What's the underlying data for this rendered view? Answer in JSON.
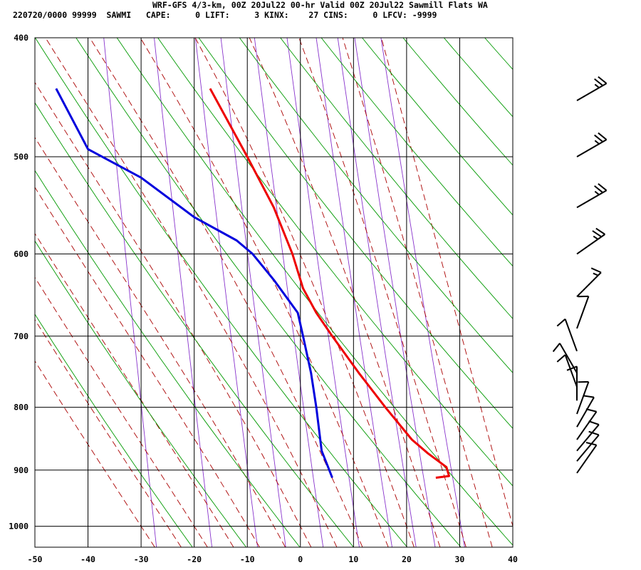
{
  "header": {
    "title": "WRF-GFS 4/3-km, 00Z 20Jul22 00-hr Valid 00Z 20Jul22 Sawmill Flats WA",
    "indices_line": "220720/0000 99999  SAWMI   CAPE:     0 LIFT:     3 KINX:    27 CINS:     0 LFCV: -9999"
  },
  "colors": {
    "temperature": "#ee0000",
    "dewpoint": "#0000dd",
    "dry_adiabat": "#009900",
    "moist_adiabat": "#aa0000",
    "mixing_ratio": "#8833cc",
    "grid": "#000000",
    "wind_barb": "#000000"
  },
  "chart_data": {
    "type": "line",
    "subtype": "skew-t log-p sounding",
    "x_ticks": [
      "-50",
      "-40",
      "-30",
      "-20",
      "-10",
      "0",
      "10",
      "20",
      "30",
      "40"
    ],
    "x_tick_values": [
      -50,
      -40,
      -30,
      -20,
      -10,
      0,
      10,
      20,
      30,
      40
    ],
    "y_ticks": [
      "400",
      "500",
      "600",
      "700",
      "800",
      "900",
      "1000"
    ],
    "y_tick_values": [
      400,
      500,
      600,
      700,
      800,
      900,
      1000
    ],
    "xlim": [
      -50,
      40
    ],
    "ylim_pressure_hpa": [
      1040,
      400
    ],
    "skew_deg_per_decade_pressure": 0,
    "series": [
      {
        "key": "temperature",
        "points": [
          {
            "p": 913,
            "t": 25.5
          },
          {
            "p": 910,
            "t": 28.0
          },
          {
            "p": 895,
            "t": 27.5
          },
          {
            "p": 872,
            "t": 24.0
          },
          {
            "p": 850,
            "t": 21.0
          },
          {
            "p": 800,
            "t": 16.0
          },
          {
            "p": 750,
            "t": 11.0
          },
          {
            "p": 700,
            "t": 6.0
          },
          {
            "p": 670,
            "t": 3.0
          },
          {
            "p": 640,
            "t": 0.5
          },
          {
            "p": 600,
            "t": -1.5
          },
          {
            "p": 550,
            "t": -5.0
          },
          {
            "p": 500,
            "t": -10.0
          },
          {
            "p": 440,
            "t": -17.0
          }
        ]
      },
      {
        "key": "dewpoint",
        "points": [
          {
            "p": 913,
            "t": 6.0
          },
          {
            "p": 890,
            "t": 5.0
          },
          {
            "p": 868,
            "t": 4.0
          },
          {
            "p": 800,
            "t": 3.0
          },
          {
            "p": 750,
            "t": 2.0
          },
          {
            "p": 700,
            "t": 0.5
          },
          {
            "p": 670,
            "t": -0.5
          },
          {
            "p": 630,
            "t": -5.0
          },
          {
            "p": 600,
            "t": -9.0
          },
          {
            "p": 585,
            "t": -12.0
          },
          {
            "p": 560,
            "t": -20.0
          },
          {
            "p": 520,
            "t": -30.0
          },
          {
            "p": 493,
            "t": -40.0
          },
          {
            "p": 440,
            "t": -46.0
          }
        ]
      }
    ],
    "wind_barbs": [
      {
        "p": 905,
        "dir": 215,
        "kt": 10
      },
      {
        "p": 885,
        "dir": 220,
        "kt": 10
      },
      {
        "p": 868,
        "dir": 220,
        "kt": 10
      },
      {
        "p": 850,
        "dir": 215,
        "kt": 10
      },
      {
        "p": 830,
        "dir": 210,
        "kt": 10
      },
      {
        "p": 810,
        "dir": 200,
        "kt": 10
      },
      {
        "p": 790,
        "dir": 180,
        "kt": 10
      },
      {
        "p": 770,
        "dir": 160,
        "kt": 10
      },
      {
        "p": 750,
        "dir": 150,
        "kt": 10
      },
      {
        "p": 720,
        "dir": 160,
        "kt": 10
      },
      {
        "p": 690,
        "dir": 200,
        "kt": 10
      },
      {
        "p": 650,
        "dir": 225,
        "kt": 15
      },
      {
        "p": 600,
        "dir": 235,
        "kt": 25
      },
      {
        "p": 550,
        "dir": 240,
        "kt": 25
      },
      {
        "p": 500,
        "dir": 240,
        "kt": 25
      },
      {
        "p": 450,
        "dir": 240,
        "kt": 25
      }
    ],
    "grid": true,
    "legend": "none"
  }
}
